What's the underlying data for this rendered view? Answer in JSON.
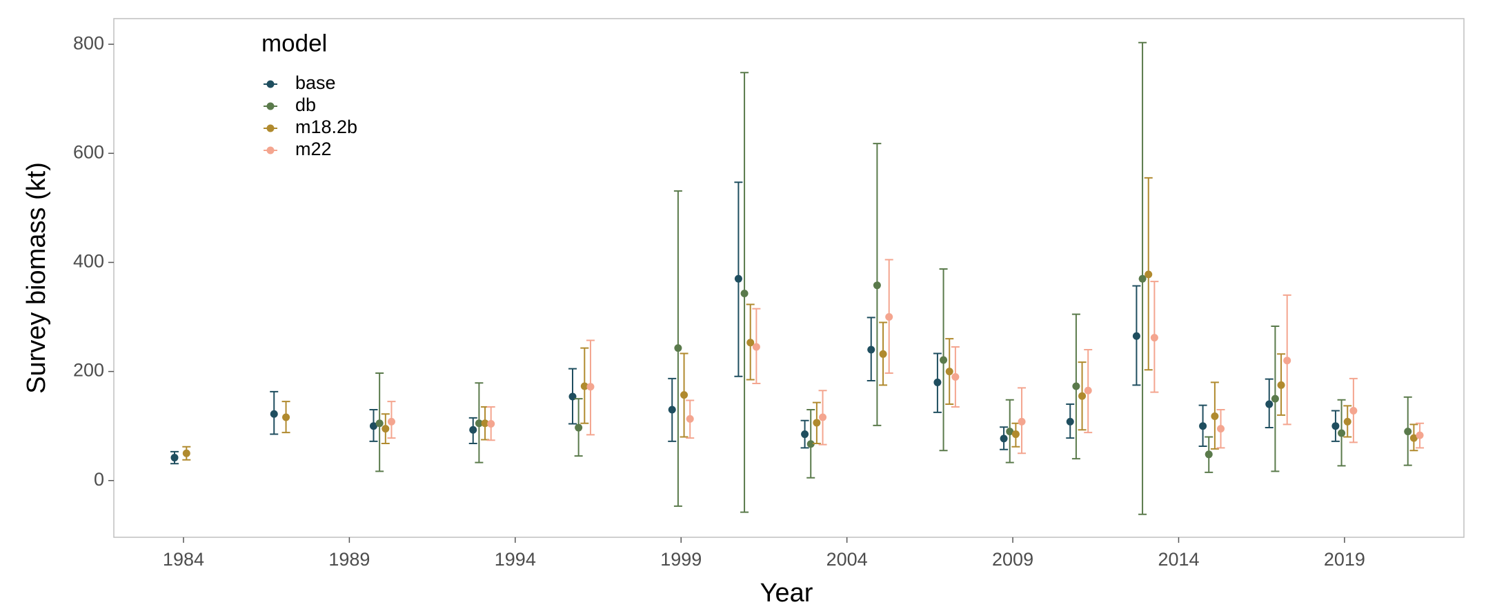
{
  "chart_data": {
    "type": "errorbar",
    "x_label": "Year",
    "y_label": "Survey biomass (kt)",
    "legend_title": "model",
    "legend_position": "top-left",
    "x": [
      1984,
      1987,
      1990,
      1993,
      1996,
      1999,
      2001,
      2003,
      2005,
      2007,
      2009,
      2011,
      2013,
      2015,
      2017,
      2019,
      2021
    ],
    "xlim": [
      1981.9,
      2022.6
    ],
    "xticks": [
      1984,
      1989,
      1994,
      1999,
      2004,
      2009,
      2014,
      2019
    ],
    "ylim": [
      -104,
      847
    ],
    "yticks": [
      0,
      200,
      400,
      600,
      800
    ],
    "series": [
      {
        "name": "base",
        "color": "#1f4e5f",
        "values": [
          42,
          122,
          100,
          93,
          154,
          130,
          370,
          85,
          240,
          180,
          77,
          108,
          265,
          100,
          140,
          100,
          null
        ],
        "lower": [
          31,
          85,
          72,
          68,
          104,
          72,
          191,
          60,
          183,
          125,
          57,
          78,
          175,
          63,
          97,
          72,
          null
        ],
        "upper": [
          53,
          163,
          130,
          115,
          205,
          187,
          547,
          110,
          299,
          233,
          98,
          140,
          357,
          138,
          186,
          128,
          null
        ]
      },
      {
        "name": "db",
        "color": "#5a7a4b",
        "values": [
          null,
          null,
          105,
          105,
          97,
          243,
          343,
          67,
          358,
          221,
          90,
          173,
          370,
          48,
          150,
          87,
          90
        ],
        "lower": [
          null,
          null,
          17,
          33,
          45,
          -47,
          -58,
          5,
          101,
          55,
          33,
          40,
          -62,
          15,
          17,
          27,
          28
        ],
        "upper": [
          null,
          null,
          197,
          179,
          150,
          531,
          748,
          130,
          618,
          388,
          148,
          305,
          803,
          80,
          283,
          148,
          153
        ]
      },
      {
        "name": "m18.2b",
        "color": "#b08a2e",
        "values": [
          50,
          116,
          95,
          105,
          173,
          157,
          253,
          106,
          232,
          200,
          85,
          155,
          378,
          118,
          175,
          108,
          78
        ],
        "lower": [
          38,
          88,
          68,
          75,
          105,
          80,
          185,
          68,
          175,
          140,
          62,
          93,
          203,
          58,
          120,
          80,
          55
        ],
        "upper": [
          62,
          145,
          122,
          135,
          243,
          233,
          323,
          143,
          290,
          260,
          105,
          217,
          555,
          180,
          232,
          137,
          103
        ]
      },
      {
        "name": "m22",
        "color": "#f4a58f",
        "values": [
          null,
          null,
          108,
          104,
          172,
          113,
          245,
          116,
          300,
          190,
          108,
          165,
          262,
          95,
          220,
          128,
          83
        ],
        "lower": [
          null,
          null,
          78,
          74,
          84,
          78,
          178,
          66,
          197,
          135,
          50,
          88,
          162,
          60,
          103,
          70,
          60
        ],
        "upper": [
          null,
          null,
          145,
          135,
          257,
          147,
          315,
          165,
          405,
          245,
          170,
          240,
          365,
          130,
          340,
          187,
          105
        ]
      }
    ]
  }
}
